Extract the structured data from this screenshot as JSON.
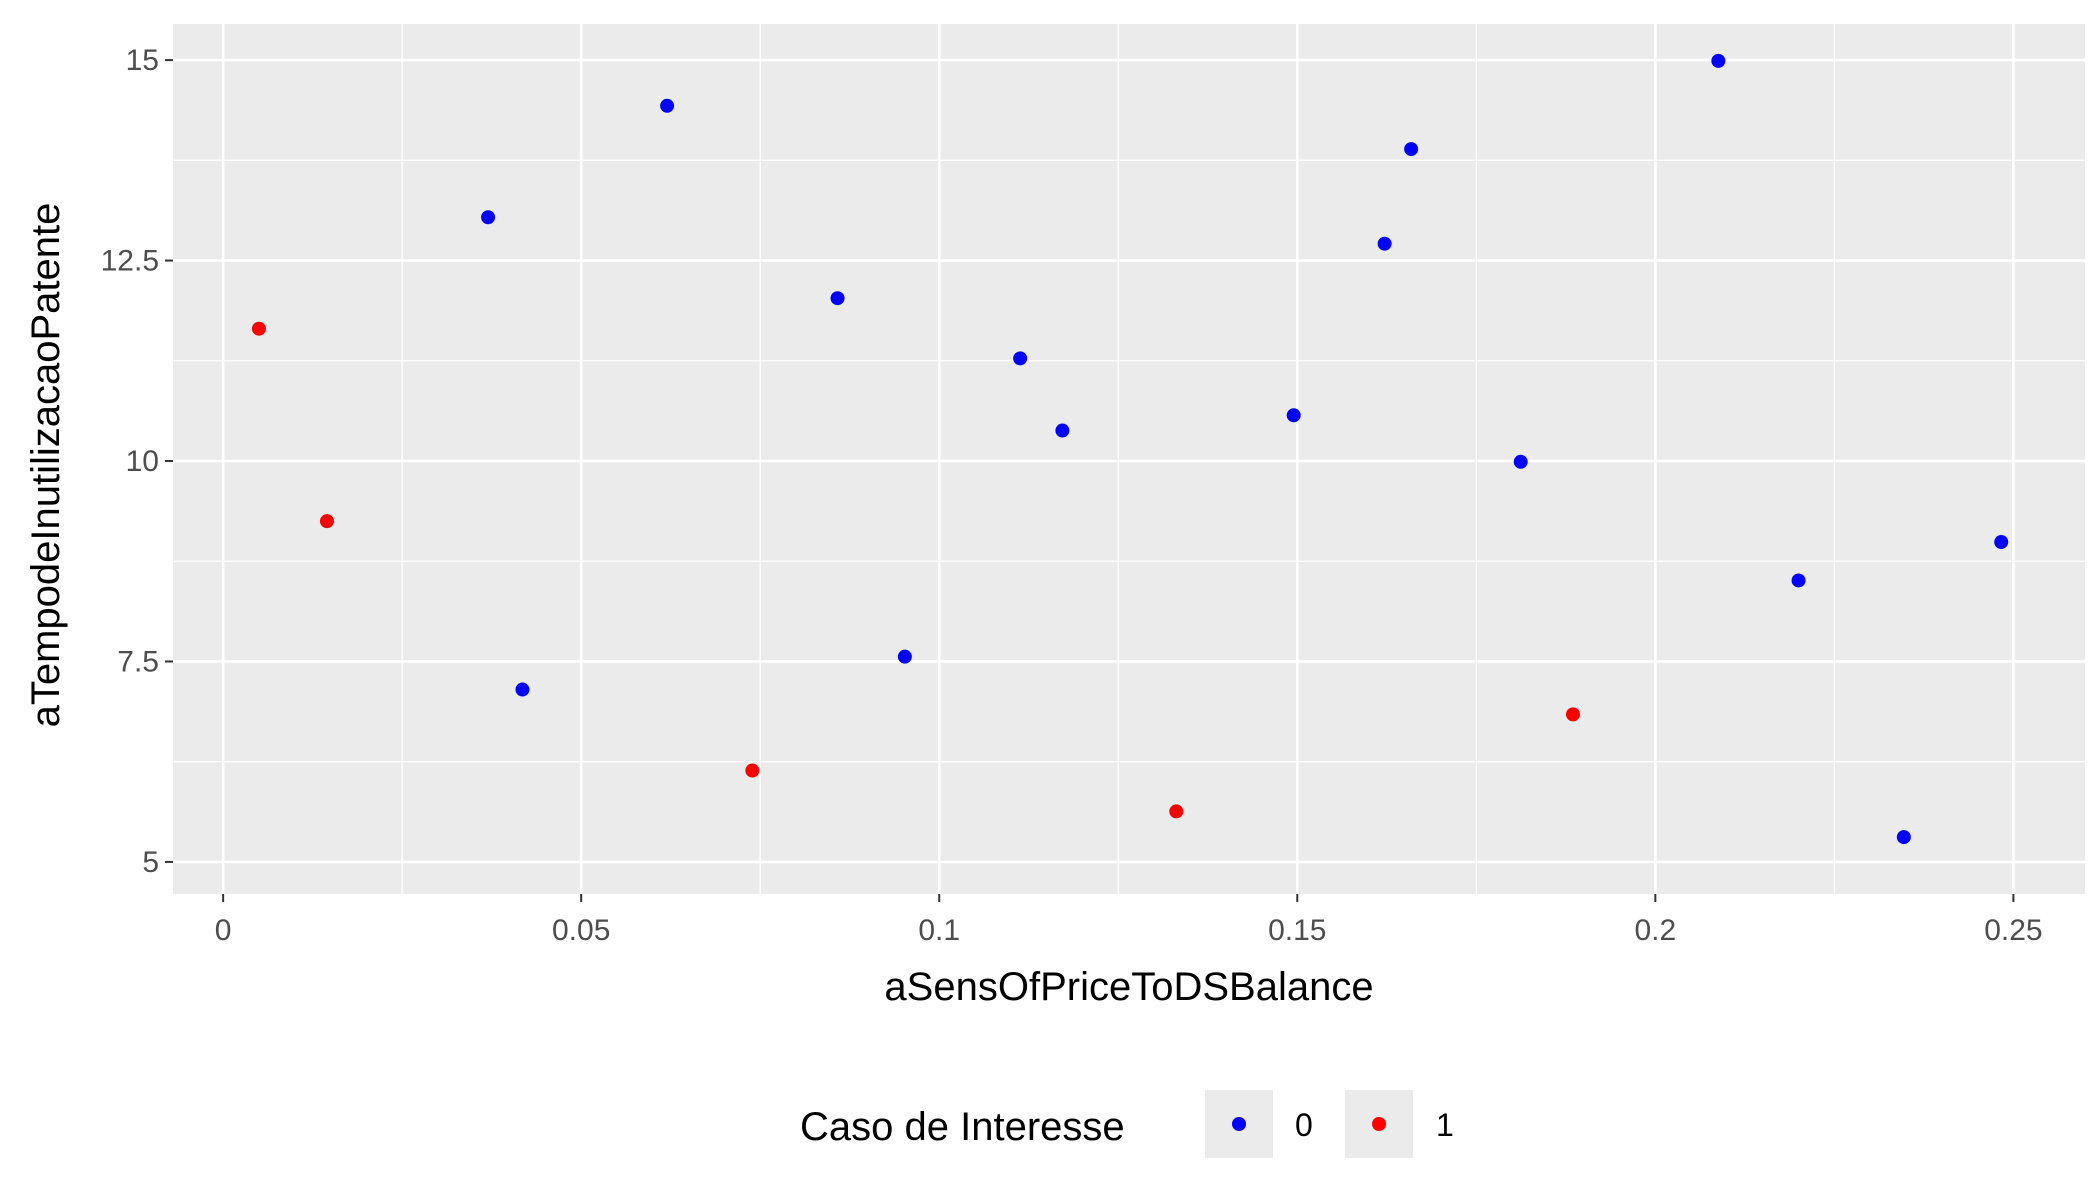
{
  "chart_data": {
    "type": "scatter",
    "xlabel": "aSensOfPriceToDSBalance",
    "ylabel": "aTempodeInutilizacaoPatente",
    "xlim": [
      -0.007,
      0.26
    ],
    "ylim": [
      4.6,
      15.45
    ],
    "x_ticks": [
      0,
      0.05,
      0.1,
      0.15,
      0.2,
      0.25
    ],
    "x_tick_labels": [
      "0",
      "0.05",
      "0.1",
      "0.15",
      "0.2",
      "0.25"
    ],
    "y_ticks": [
      5,
      7.5,
      10,
      12.5,
      15
    ],
    "y_tick_labels": [
      "5",
      "7.5",
      "10",
      "12.5",
      "15"
    ],
    "grid": true,
    "legend": {
      "title": "Caso de Interesse",
      "position": "bottom",
      "entries": [
        {
          "label": "0",
          "color": "#0000ff"
        },
        {
          "label": "1",
          "color": "#ff0000"
        }
      ]
    },
    "series": [
      {
        "name": "0",
        "color": "#0000ff",
        "points": [
          {
            "x": 0.037,
            "y": 13.04
          },
          {
            "x": 0.0418,
            "y": 7.15
          },
          {
            "x": 0.062,
            "y": 14.43
          },
          {
            "x": 0.0858,
            "y": 12.03
          },
          {
            "x": 0.0952,
            "y": 7.56
          },
          {
            "x": 0.1113,
            "y": 11.28
          },
          {
            "x": 0.1172,
            "y": 10.38
          },
          {
            "x": 0.1495,
            "y": 10.57
          },
          {
            "x": 0.1622,
            "y": 12.71
          },
          {
            "x": 0.1659,
            "y": 13.89
          },
          {
            "x": 0.1812,
            "y": 9.99
          },
          {
            "x": 0.2088,
            "y": 14.99
          },
          {
            "x": 0.22,
            "y": 8.51
          },
          {
            "x": 0.2347,
            "y": 5.31
          },
          {
            "x": 0.2483,
            "y": 8.99
          }
        ]
      },
      {
        "name": "1",
        "color": "#ff0000",
        "points": [
          {
            "x": 0.005,
            "y": 11.65
          },
          {
            "x": 0.0145,
            "y": 9.25
          },
          {
            "x": 0.0739,
            "y": 6.14
          },
          {
            "x": 0.1331,
            "y": 5.63
          },
          {
            "x": 0.1885,
            "y": 6.84
          }
        ]
      }
    ]
  }
}
